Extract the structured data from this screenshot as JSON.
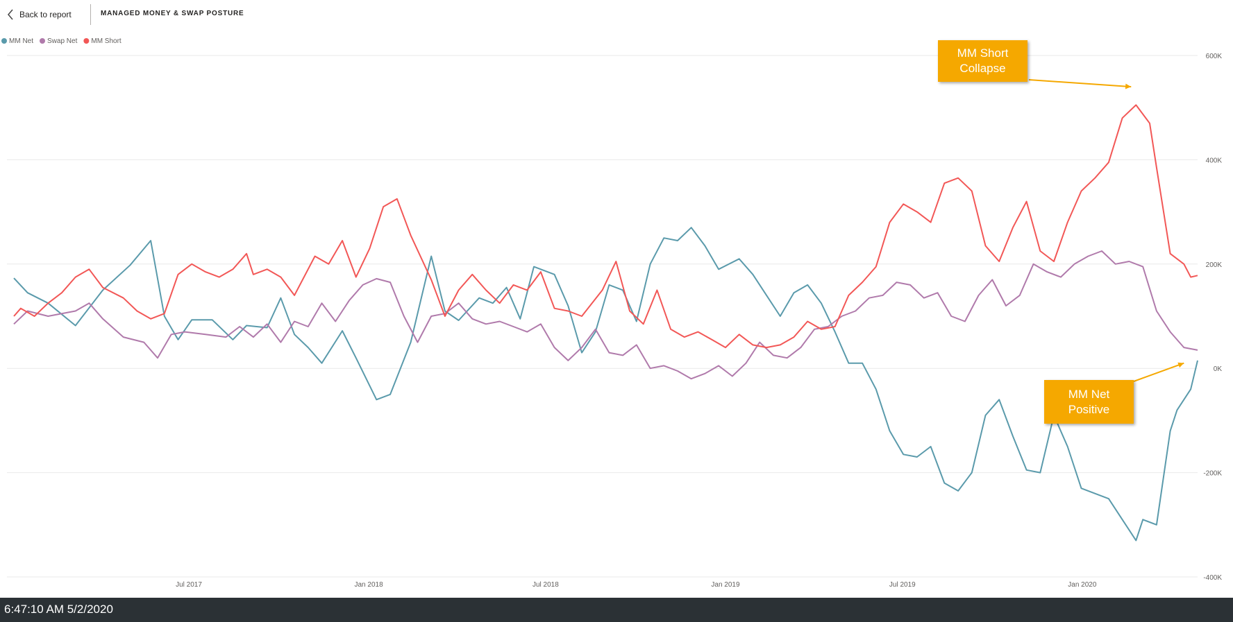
{
  "header": {
    "back_label": "Back to report",
    "page_title": "MANAGED MONEY & SWAP POSTURE"
  },
  "status_bar": {
    "timestamp": "6:47:10 AM 5/2/2020"
  },
  "colors": {
    "mm_net": "#5a9aab",
    "swap_net": "#b07aab",
    "mm_short": "#f25756",
    "callout": "#f5a800",
    "status_bar": "#2b3135"
  },
  "annotations": [
    {
      "text": "MM Short Collapse",
      "target": "MM Short",
      "target_x": "2020-02-20",
      "target_y": 540000
    },
    {
      "text": "MM Net Positive",
      "target": "MM Net",
      "target_x": "2020-04-14",
      "target_y": 10000
    }
  ],
  "chart_data": {
    "type": "line",
    "title": "",
    "xlabel": "",
    "ylabel": "",
    "legend": "top-left",
    "y_axis_position": "right",
    "grid": true,
    "ylim": [
      -400000,
      600000
    ],
    "y_ticks": [
      {
        "value": -400000,
        "label": "-400K"
      },
      {
        "value": -200000,
        "label": "-200K"
      },
      {
        "value": 0,
        "label": "0K"
      },
      {
        "value": 200000,
        "label": "200K"
      },
      {
        "value": 400000,
        "label": "400K"
      },
      {
        "value": 600000,
        "label": "600K"
      }
    ],
    "x_range": [
      "2017-01-03",
      "2020-04-28"
    ],
    "x_ticks": [
      {
        "value": "2017-07-01",
        "label": "Jul 2017"
      },
      {
        "value": "2018-01-01",
        "label": "Jan 2018"
      },
      {
        "value": "2018-07-01",
        "label": "Jul 2018"
      },
      {
        "value": "2019-01-01",
        "label": "Jan 2019"
      },
      {
        "value": "2019-07-01",
        "label": "Jul 2019"
      },
      {
        "value": "2020-01-01",
        "label": "Jan 2020"
      }
    ],
    "series": [
      {
        "name": "MM Net",
        "color": "#5a9aab",
        "points": [
          [
            "2017-01-03",
            173000
          ],
          [
            "2017-01-17",
            145000
          ],
          [
            "2017-02-07",
            125000
          ],
          [
            "2017-03-07",
            82000
          ],
          [
            "2017-04-04",
            150000
          ],
          [
            "2017-05-02",
            198000
          ],
          [
            "2017-05-23",
            245000
          ],
          [
            "2017-06-06",
            100000
          ],
          [
            "2017-06-20",
            55000
          ],
          [
            "2017-07-04",
            93000
          ],
          [
            "2017-07-25",
            93000
          ],
          [
            "2017-08-15",
            55000
          ],
          [
            "2017-08-29",
            82000
          ],
          [
            "2017-09-19",
            78000
          ],
          [
            "2017-10-03",
            135000
          ],
          [
            "2017-10-17",
            65000
          ],
          [
            "2017-10-31",
            40000
          ],
          [
            "2017-11-14",
            10000
          ],
          [
            "2017-12-05",
            72000
          ],
          [
            "2017-12-19",
            20000
          ],
          [
            "2018-01-09",
            -60000
          ],
          [
            "2018-01-23",
            -50000
          ],
          [
            "2018-02-13",
            50000
          ],
          [
            "2018-03-06",
            215000
          ],
          [
            "2018-03-20",
            110000
          ],
          [
            "2018-04-03",
            92000
          ],
          [
            "2018-04-24",
            135000
          ],
          [
            "2018-05-08",
            125000
          ],
          [
            "2018-05-22",
            155000
          ],
          [
            "2018-06-05",
            95000
          ],
          [
            "2018-06-19",
            195000
          ],
          [
            "2018-07-10",
            180000
          ],
          [
            "2018-07-24",
            120000
          ],
          [
            "2018-08-07",
            30000
          ],
          [
            "2018-08-21",
            70000
          ],
          [
            "2018-09-04",
            160000
          ],
          [
            "2018-09-18",
            150000
          ],
          [
            "2018-10-02",
            90000
          ],
          [
            "2018-10-16",
            200000
          ],
          [
            "2018-10-30",
            250000
          ],
          [
            "2018-11-13",
            245000
          ],
          [
            "2018-11-27",
            270000
          ],
          [
            "2018-12-11",
            235000
          ],
          [
            "2018-12-25",
            190000
          ],
          [
            "2019-01-15",
            210000
          ],
          [
            "2019-01-29",
            180000
          ],
          [
            "2019-02-12",
            140000
          ],
          [
            "2019-02-26",
            100000
          ],
          [
            "2019-03-12",
            145000
          ],
          [
            "2019-03-26",
            160000
          ],
          [
            "2019-04-09",
            125000
          ],
          [
            "2019-04-23",
            70000
          ],
          [
            "2019-05-07",
            10000
          ],
          [
            "2019-05-21",
            10000
          ],
          [
            "2019-06-04",
            -40000
          ],
          [
            "2019-06-18",
            -120000
          ],
          [
            "2019-07-02",
            -165000
          ],
          [
            "2019-07-16",
            -170000
          ],
          [
            "2019-07-30",
            -150000
          ],
          [
            "2019-08-13",
            -220000
          ],
          [
            "2019-08-27",
            -235000
          ],
          [
            "2019-09-10",
            -200000
          ],
          [
            "2019-09-24",
            -90000
          ],
          [
            "2019-10-08",
            -60000
          ],
          [
            "2019-10-22",
            -130000
          ],
          [
            "2019-11-05",
            -195000
          ],
          [
            "2019-11-19",
            -200000
          ],
          [
            "2019-12-03",
            -90000
          ],
          [
            "2019-12-17",
            -150000
          ],
          [
            "2019-12-31",
            -230000
          ],
          [
            "2020-01-14",
            -240000
          ],
          [
            "2020-01-28",
            -250000
          ],
          [
            "2020-02-11",
            -290000
          ],
          [
            "2020-02-25",
            -330000
          ],
          [
            "2020-03-03",
            -290000
          ],
          [
            "2020-03-17",
            -300000
          ],
          [
            "2020-03-31",
            -120000
          ],
          [
            "2020-04-07",
            -80000
          ],
          [
            "2020-04-21",
            -40000
          ],
          [
            "2020-04-28",
            15000
          ]
        ]
      },
      {
        "name": "Swap Net",
        "color": "#b07aab",
        "points": [
          [
            "2017-01-03",
            85000
          ],
          [
            "2017-01-17",
            110000
          ],
          [
            "2017-02-07",
            100000
          ],
          [
            "2017-03-07",
            110000
          ],
          [
            "2017-03-21",
            125000
          ],
          [
            "2017-04-04",
            95000
          ],
          [
            "2017-04-25",
            60000
          ],
          [
            "2017-05-16",
            50000
          ],
          [
            "2017-05-30",
            20000
          ],
          [
            "2017-06-13",
            65000
          ],
          [
            "2017-06-27",
            70000
          ],
          [
            "2017-07-18",
            65000
          ],
          [
            "2017-08-08",
            60000
          ],
          [
            "2017-08-22",
            80000
          ],
          [
            "2017-09-05",
            60000
          ],
          [
            "2017-09-19",
            85000
          ],
          [
            "2017-10-03",
            50000
          ],
          [
            "2017-10-17",
            90000
          ],
          [
            "2017-10-31",
            80000
          ],
          [
            "2017-11-14",
            125000
          ],
          [
            "2017-11-28",
            90000
          ],
          [
            "2017-12-12",
            130000
          ],
          [
            "2017-12-26",
            160000
          ],
          [
            "2018-01-09",
            172000
          ],
          [
            "2018-01-23",
            165000
          ],
          [
            "2018-02-06",
            100000
          ],
          [
            "2018-02-20",
            50000
          ],
          [
            "2018-03-06",
            100000
          ],
          [
            "2018-03-20",
            105000
          ],
          [
            "2018-04-03",
            125000
          ],
          [
            "2018-04-17",
            95000
          ],
          [
            "2018-05-01",
            85000
          ],
          [
            "2018-05-15",
            90000
          ],
          [
            "2018-05-29",
            80000
          ],
          [
            "2018-06-12",
            70000
          ],
          [
            "2018-06-26",
            85000
          ],
          [
            "2018-07-10",
            40000
          ],
          [
            "2018-07-24",
            15000
          ],
          [
            "2018-08-07",
            40000
          ],
          [
            "2018-08-21",
            75000
          ],
          [
            "2018-09-04",
            30000
          ],
          [
            "2018-09-18",
            25000
          ],
          [
            "2018-10-02",
            45000
          ],
          [
            "2018-10-16",
            0
          ],
          [
            "2018-10-30",
            5000
          ],
          [
            "2018-11-13",
            -5000
          ],
          [
            "2018-11-27",
            -20000
          ],
          [
            "2018-12-11",
            -10000
          ],
          [
            "2018-12-25",
            5000
          ],
          [
            "2019-01-08",
            -15000
          ],
          [
            "2019-01-22",
            10000
          ],
          [
            "2019-02-05",
            50000
          ],
          [
            "2019-02-19",
            25000
          ],
          [
            "2019-03-05",
            20000
          ],
          [
            "2019-03-19",
            40000
          ],
          [
            "2019-04-02",
            75000
          ],
          [
            "2019-04-16",
            80000
          ],
          [
            "2019-04-30",
            100000
          ],
          [
            "2019-05-14",
            110000
          ],
          [
            "2019-05-28",
            135000
          ],
          [
            "2019-06-11",
            140000
          ],
          [
            "2019-06-25",
            165000
          ],
          [
            "2019-07-09",
            160000
          ],
          [
            "2019-07-23",
            135000
          ],
          [
            "2019-08-06",
            145000
          ],
          [
            "2019-08-20",
            100000
          ],
          [
            "2019-09-03",
            90000
          ],
          [
            "2019-09-17",
            140000
          ],
          [
            "2019-10-01",
            170000
          ],
          [
            "2019-10-15",
            120000
          ],
          [
            "2019-10-29",
            140000
          ],
          [
            "2019-11-12",
            200000
          ],
          [
            "2019-11-26",
            185000
          ],
          [
            "2019-12-10",
            175000
          ],
          [
            "2019-12-24",
            200000
          ],
          [
            "2020-01-07",
            215000
          ],
          [
            "2020-01-21",
            225000
          ],
          [
            "2020-02-04",
            200000
          ],
          [
            "2020-02-18",
            205000
          ],
          [
            "2020-03-03",
            195000
          ],
          [
            "2020-03-17",
            110000
          ],
          [
            "2020-03-31",
            70000
          ],
          [
            "2020-04-14",
            40000
          ],
          [
            "2020-04-28",
            35000
          ]
        ]
      },
      {
        "name": "MM Short",
        "color": "#f25756",
        "points": [
          [
            "2017-01-03",
            100000
          ],
          [
            "2017-01-10",
            115000
          ],
          [
            "2017-01-24",
            100000
          ],
          [
            "2017-02-07",
            125000
          ],
          [
            "2017-02-21",
            145000
          ],
          [
            "2017-03-07",
            175000
          ],
          [
            "2017-03-21",
            190000
          ],
          [
            "2017-04-04",
            155000
          ],
          [
            "2017-04-25",
            135000
          ],
          [
            "2017-05-09",
            110000
          ],
          [
            "2017-05-23",
            95000
          ],
          [
            "2017-06-06",
            105000
          ],
          [
            "2017-06-20",
            180000
          ],
          [
            "2017-07-04",
            200000
          ],
          [
            "2017-07-18",
            185000
          ],
          [
            "2017-08-01",
            175000
          ],
          [
            "2017-08-15",
            190000
          ],
          [
            "2017-08-29",
            220000
          ],
          [
            "2017-09-05",
            180000
          ],
          [
            "2017-09-19",
            190000
          ],
          [
            "2017-10-03",
            175000
          ],
          [
            "2017-10-17",
            140000
          ],
          [
            "2017-11-07",
            215000
          ],
          [
            "2017-11-21",
            200000
          ],
          [
            "2017-12-05",
            245000
          ],
          [
            "2017-12-19",
            175000
          ],
          [
            "2018-01-02",
            230000
          ],
          [
            "2018-01-16",
            310000
          ],
          [
            "2018-01-30",
            325000
          ],
          [
            "2018-02-13",
            255000
          ],
          [
            "2018-03-06",
            170000
          ],
          [
            "2018-03-20",
            100000
          ],
          [
            "2018-04-03",
            150000
          ],
          [
            "2018-04-17",
            180000
          ],
          [
            "2018-05-01",
            150000
          ],
          [
            "2018-05-15",
            125000
          ],
          [
            "2018-05-29",
            160000
          ],
          [
            "2018-06-12",
            150000
          ],
          [
            "2018-06-26",
            185000
          ],
          [
            "2018-07-10",
            115000
          ],
          [
            "2018-07-24",
            110000
          ],
          [
            "2018-08-07",
            100000
          ],
          [
            "2018-08-28",
            150000
          ],
          [
            "2018-09-11",
            205000
          ],
          [
            "2018-09-25",
            110000
          ],
          [
            "2018-10-09",
            85000
          ],
          [
            "2018-10-23",
            150000
          ],
          [
            "2018-11-06",
            75000
          ],
          [
            "2018-11-20",
            60000
          ],
          [
            "2018-12-04",
            70000
          ],
          [
            "2018-12-18",
            55000
          ],
          [
            "2019-01-01",
            40000
          ],
          [
            "2019-01-15",
            65000
          ],
          [
            "2019-01-29",
            45000
          ],
          [
            "2019-02-12",
            40000
          ],
          [
            "2019-02-26",
            45000
          ],
          [
            "2019-03-12",
            60000
          ],
          [
            "2019-03-26",
            90000
          ],
          [
            "2019-04-09",
            75000
          ],
          [
            "2019-04-23",
            80000
          ],
          [
            "2019-05-07",
            140000
          ],
          [
            "2019-05-21",
            165000
          ],
          [
            "2019-06-04",
            195000
          ],
          [
            "2019-06-18",
            280000
          ],
          [
            "2019-07-02",
            315000
          ],
          [
            "2019-07-16",
            300000
          ],
          [
            "2019-07-30",
            280000
          ],
          [
            "2019-08-13",
            355000
          ],
          [
            "2019-08-27",
            365000
          ],
          [
            "2019-09-10",
            340000
          ],
          [
            "2019-09-24",
            235000
          ],
          [
            "2019-10-08",
            205000
          ],
          [
            "2019-10-22",
            270000
          ],
          [
            "2019-11-05",
            320000
          ],
          [
            "2019-11-19",
            225000
          ],
          [
            "2019-12-03",
            205000
          ],
          [
            "2019-12-17",
            280000
          ],
          [
            "2019-12-31",
            340000
          ],
          [
            "2020-01-14",
            365000
          ],
          [
            "2020-01-28",
            395000
          ],
          [
            "2020-02-11",
            480000
          ],
          [
            "2020-02-25",
            505000
          ],
          [
            "2020-03-10",
            470000
          ],
          [
            "2020-03-17",
            385000
          ],
          [
            "2020-03-31",
            220000
          ],
          [
            "2020-04-14",
            200000
          ],
          [
            "2020-04-21",
            175000
          ],
          [
            "2020-04-28",
            178000
          ]
        ]
      }
    ]
  }
}
